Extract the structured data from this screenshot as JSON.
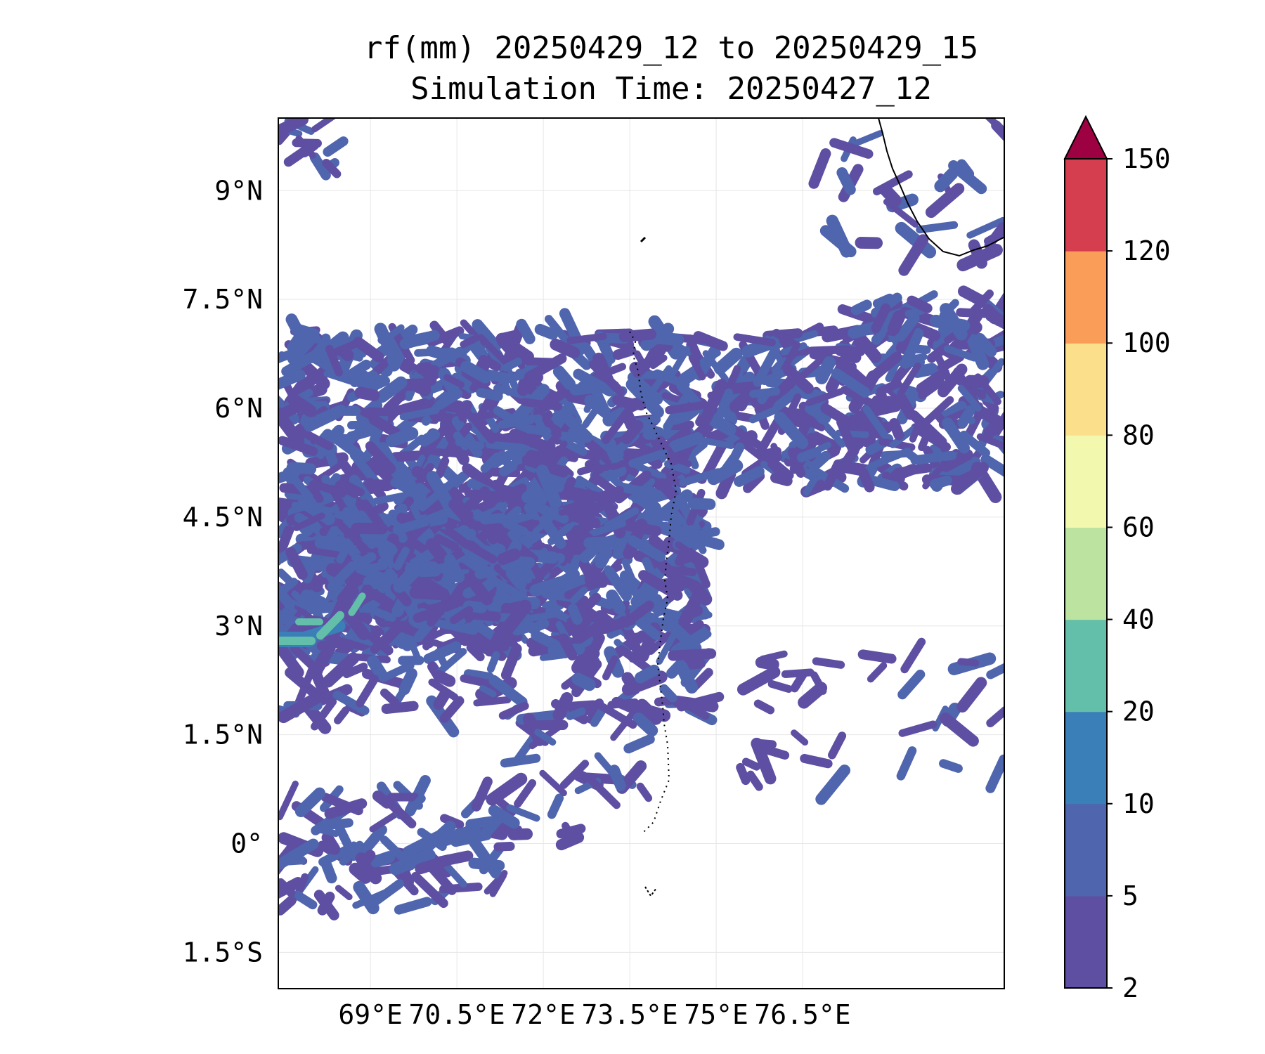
{
  "title": {
    "line1": "rf(mm) 20250429_12 to 20250429_15",
    "line2": "Simulation Time: 20250427_12"
  },
  "map": {
    "lon_range": [
      67.4,
      80.0
    ],
    "lat_range": [
      -2.0,
      10.0
    ],
    "lon_ticks": [
      {
        "value": 69.0,
        "label": "69°E"
      },
      {
        "value": 70.5,
        "label": "70.5°E"
      },
      {
        "value": 72.0,
        "label": "72°E"
      },
      {
        "value": 73.5,
        "label": "73.5°E"
      },
      {
        "value": 75.0,
        "label": "75°E"
      },
      {
        "value": 76.5,
        "label": "76.5°E"
      }
    ],
    "lat_ticks": [
      {
        "value": 9.0,
        "label": "9°N"
      },
      {
        "value": 7.5,
        "label": "7.5°N"
      },
      {
        "value": 6.0,
        "label": "6°N"
      },
      {
        "value": 4.5,
        "label": "4.5°N"
      },
      {
        "value": 3.0,
        "label": "3°N"
      },
      {
        "value": 1.5,
        "label": "1.5°N"
      },
      {
        "value": 0.0,
        "label": "0°"
      },
      {
        "value": -1.5,
        "label": "1.5°S"
      }
    ],
    "grid": true
  },
  "colorbar": {
    "levels": [
      "2",
      "5",
      "10",
      "20",
      "40",
      "60",
      "80",
      "100",
      "120",
      "150"
    ],
    "colors": [
      "#5e4fa2",
      "#4f65ad",
      "#3a7fb8",
      "#64bfaa",
      "#bce3a0",
      "#f2f9ae",
      "#fcdf8a",
      "#f99d58",
      "#d53e4f"
    ],
    "extend_color": "#9e0142",
    "extend": "max"
  }
}
